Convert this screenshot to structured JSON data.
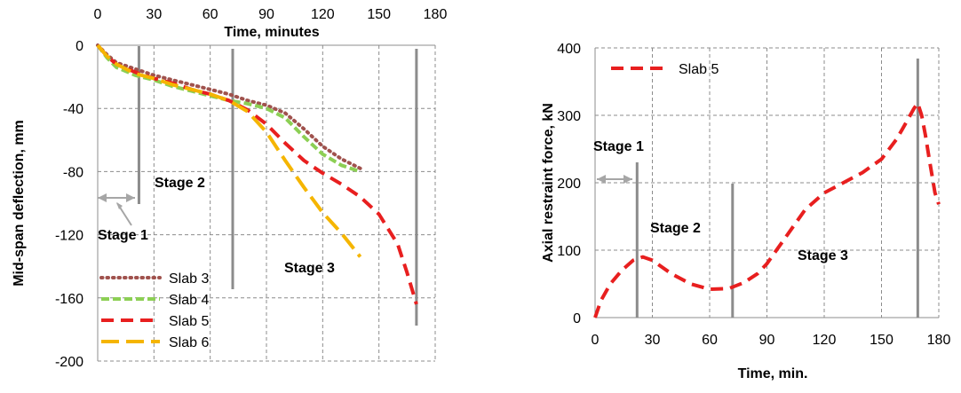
{
  "chart_data": [
    {
      "type": "line",
      "xlabel": "Time, minutes",
      "ylabel": "Mid-span deflection, mm",
      "xlim": [
        0,
        180
      ],
      "ylim": [
        -200,
        0
      ],
      "x_ticks": [
        "0",
        "30",
        "60",
        "90",
        "120",
        "150",
        "180"
      ],
      "y_ticks": [
        "0",
        "-40",
        "-80",
        "-120",
        "-160",
        "-200"
      ],
      "x_axis_position": "top",
      "grid": true,
      "legend_position": "bottom-left",
      "series": [
        {
          "name": "Slab 3",
          "color": "#a0524d",
          "style": "dotted",
          "x": [
            0,
            5,
            10,
            20,
            30,
            40,
            50,
            60,
            70,
            80,
            90,
            100,
            110,
            120,
            130,
            140
          ],
          "y": [
            0,
            -6,
            -11,
            -15,
            -19,
            -22,
            -25,
            -28,
            -31,
            -35,
            -38,
            -43,
            -53,
            -64,
            -72,
            -78
          ]
        },
        {
          "name": "Slab 4",
          "color": "#8ccf54",
          "style": "dashed",
          "x": [
            0,
            5,
            10,
            20,
            30,
            40,
            50,
            60,
            70,
            80,
            90,
            100,
            110,
            120,
            130,
            140
          ],
          "y": [
            0,
            -8,
            -14,
            -19,
            -22,
            -26,
            -29,
            -32,
            -35,
            -37,
            -40,
            -46,
            -58,
            -69,
            -76,
            -80
          ]
        },
        {
          "name": "Slab 5",
          "color": "#e81f1f",
          "style": "long-dashed",
          "x": [
            0,
            5,
            10,
            20,
            30,
            40,
            50,
            60,
            70,
            80,
            90,
            100,
            110,
            120,
            130,
            140,
            150,
            160,
            165,
            170
          ],
          "y": [
            0,
            -7,
            -12,
            -17,
            -21,
            -24,
            -28,
            -31,
            -35,
            -41,
            -50,
            -62,
            -73,
            -81,
            -88,
            -96,
            -107,
            -126,
            -144,
            -164
          ]
        },
        {
          "name": "Slab 6",
          "color": "#f5b500",
          "style": "long-dashed",
          "x": [
            0,
            5,
            10,
            20,
            30,
            40,
            50,
            60,
            70,
            80,
            90,
            100,
            110,
            120,
            130,
            140
          ],
          "y": [
            0,
            -7,
            -12,
            -18,
            -21,
            -25,
            -28,
            -31,
            -35,
            -42,
            -55,
            -73,
            -90,
            -106,
            -119,
            -134
          ]
        }
      ],
      "annotations": {
        "stage_1": "Stage 1",
        "stage_2": "Stage 2",
        "stage_3": "Stage 3"
      },
      "stage_lines_x": [
        22,
        72,
        170
      ]
    },
    {
      "type": "line",
      "xlabel": "Time, min.",
      "ylabel": "Axial restraint force, kN",
      "xlim": [
        0,
        180
      ],
      "ylim": [
        0,
        400
      ],
      "x_ticks": [
        "0",
        "30",
        "60",
        "90",
        "120",
        "150",
        "180"
      ],
      "y_ticks": [
        "0",
        "100",
        "200",
        "300",
        "400"
      ],
      "grid": true,
      "legend_position": "top-left",
      "series": [
        {
          "name": "Slab 5",
          "color": "#e81f1f",
          "style": "long-dashed",
          "x": [
            0,
            3,
            8,
            14,
            20,
            25,
            30,
            40,
            50,
            60,
            70,
            78,
            85,
            90,
            100,
            110,
            120,
            130,
            140,
            150,
            158,
            163,
            167,
            169,
            171,
            173,
            175,
            178,
            180
          ],
          "y": [
            0,
            25,
            50,
            70,
            85,
            90,
            85,
            65,
            50,
            42,
            43,
            52,
            65,
            80,
            120,
            160,
            185,
            200,
            215,
            235,
            265,
            290,
            310,
            318,
            300,
            270,
            235,
            185,
            168
          ]
        }
      ],
      "annotations": {
        "stage_1": "Stage 1",
        "stage_2": "Stage 2",
        "stage_3": "Stage 3"
      },
      "stage_lines_x": [
        22,
        72,
        169
      ]
    }
  ]
}
